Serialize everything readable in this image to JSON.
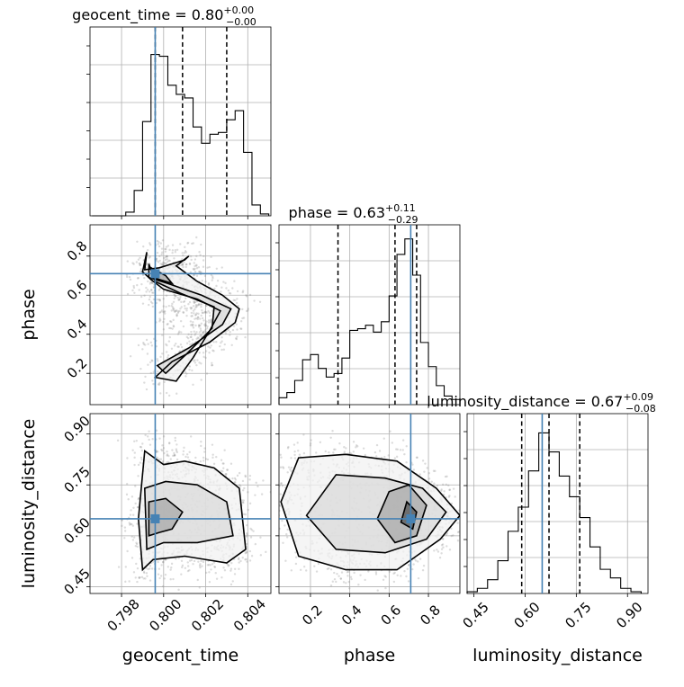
{
  "chart_data": {
    "type": "corner",
    "parameters": [
      "geocent_time",
      "phase",
      "luminosity_distance"
    ],
    "titles": [
      {
        "param": "geocent_time",
        "prefix": "geocent_time = ",
        "value": "0.80",
        "plus": "+0.00",
        "minus": "−0.00"
      },
      {
        "param": "phase",
        "prefix": "phase = ",
        "value": "0.63",
        "plus": "+0.11",
        "minus": "−0.29"
      },
      {
        "param": "luminosity_distance",
        "prefix": "luminosity_distance = ",
        "value": "0.67",
        "plus": "+0.09",
        "minus": "−0.08"
      }
    ],
    "axis_labels": [
      "geocent_time",
      "phase",
      "luminosity_distance"
    ],
    "ranges": {
      "geocent_time": [
        0.7965,
        0.8051
      ],
      "phase": [
        0.04,
        0.96
      ],
      "luminosity_distance": [
        0.43,
        0.96
      ]
    },
    "ticks": {
      "geocent_time": {
        "values": [
          0.798,
          0.8,
          0.802,
          0.804
        ],
        "labels": [
          "0.798",
          "0.800",
          "0.802",
          "0.804"
        ]
      },
      "phase": {
        "values": [
          0.2,
          0.4,
          0.6,
          0.8
        ],
        "labels": [
          "0.2",
          "0.4",
          "0.6",
          "0.8"
        ]
      },
      "luminosity_distance": {
        "values": [
          0.45,
          0.6,
          0.75,
          0.9
        ],
        "labels": [
          "0.45",
          "0.60",
          "0.75",
          "0.90"
        ]
      }
    },
    "truths": {
      "geocent_time": 0.7996,
      "phase": 0.71,
      "luminosity_distance": 0.65
    },
    "quantiles": {
      "geocent_time": [
        0.7996,
        0.8009,
        0.803
      ],
      "phase": [
        0.34,
        0.63,
        0.74
      ],
      "luminosity_distance": [
        0.59,
        0.67,
        0.76
      ]
    },
    "histograms": {
      "geocent_time": {
        "edges": [
          0.7966,
          0.797,
          0.7974,
          0.7978,
          0.7982,
          0.7986,
          0.799,
          0.7994,
          0.7998,
          0.8002,
          0.8006,
          0.801,
          0.8014,
          0.8018,
          0.8022,
          0.8026,
          0.803,
          0.8034,
          0.8038,
          0.8042,
          0.8046,
          0.805
        ],
        "counts": [
          0,
          0,
          0,
          0,
          0.02,
          0.14,
          0.52,
          0.89,
          0.88,
          0.72,
          0.67,
          0.65,
          0.49,
          0.4,
          0.45,
          0.46,
          0.53,
          0.58,
          0.35,
          0.06,
          0.01
        ]
      },
      "phase": {
        "edges": [
          0.04,
          0.08,
          0.12,
          0.16,
          0.2,
          0.24,
          0.28,
          0.32,
          0.36,
          0.4,
          0.44,
          0.48,
          0.52,
          0.56,
          0.6,
          0.64,
          0.68,
          0.72,
          0.76,
          0.8,
          0.84,
          0.88,
          0.92,
          0.96
        ],
        "counts": [
          0.04,
          0.07,
          0.14,
          0.26,
          0.29,
          0.21,
          0.16,
          0.18,
          0.27,
          0.43,
          0.44,
          0.46,
          0.42,
          0.48,
          0.63,
          0.87,
          0.96,
          0.75,
          0.36,
          0.22,
          0.11,
          0.05,
          0.03
        ]
      },
      "luminosity_distance": {
        "edges": [
          0.43,
          0.46,
          0.49,
          0.52,
          0.55,
          0.58,
          0.61,
          0.64,
          0.67,
          0.7,
          0.73,
          0.76,
          0.79,
          0.82,
          0.85,
          0.88,
          0.91,
          0.94
        ],
        "counts": [
          0.01,
          0.03,
          0.08,
          0.19,
          0.36,
          0.5,
          0.71,
          0.93,
          0.82,
          0.68,
          0.56,
          0.44,
          0.27,
          0.14,
          0.09,
          0.03,
          0.01
        ]
      }
    },
    "contours": {
      "phase_vs_geocent_time": [
        [
          [
            0.7992,
            0.82
          ],
          [
            0.7991,
            0.73
          ],
          [
            0.7998,
            0.74
          ],
          [
            0.801,
            0.78
          ],
          [
            0.8012,
            0.8
          ],
          [
            0.8006,
            0.75
          ],
          [
            0.8016,
            0.67
          ],
          [
            0.8028,
            0.6
          ],
          [
            0.8036,
            0.53
          ],
          [
            0.8034,
            0.46
          ],
          [
            0.8022,
            0.36
          ],
          [
            0.8004,
            0.26
          ],
          [
            0.7996,
            0.18
          ],
          [
            0.8006,
            0.16
          ],
          [
            0.8014,
            0.28
          ],
          [
            0.8022,
            0.42
          ],
          [
            0.8027,
            0.52
          ],
          [
            0.8016,
            0.58
          ],
          [
            0.8,
            0.63
          ],
          [
            0.7994,
            0.68
          ],
          [
            0.799,
            0.72
          ],
          [
            0.7992,
            0.82
          ]
        ],
        [
          [
            0.7993,
            0.76
          ],
          [
            0.7993,
            0.69
          ],
          [
            0.8002,
            0.66
          ],
          [
            0.8018,
            0.6
          ],
          [
            0.8032,
            0.53
          ],
          [
            0.8028,
            0.45
          ],
          [
            0.8012,
            0.33
          ],
          [
            0.7997,
            0.24
          ],
          [
            0.8001,
            0.2
          ],
          [
            0.8011,
            0.3
          ],
          [
            0.8023,
            0.43
          ],
          [
            0.8024,
            0.54
          ],
          [
            0.8008,
            0.61
          ],
          [
            0.7996,
            0.67
          ],
          [
            0.7993,
            0.76
          ]
        ],
        [
          [
            0.7994,
            0.74
          ],
          [
            0.7995,
            0.69
          ],
          [
            0.8004,
            0.66
          ],
          [
            0.8001,
            0.7
          ],
          [
            0.7994,
            0.74
          ]
        ]
      ],
      "luminosity_distance_vs_geocent_time": [
        [
          [
            0.799,
            0.5
          ],
          [
            0.7988,
            0.65
          ],
          [
            0.7991,
            0.85
          ],
          [
            0.8,
            0.81
          ],
          [
            0.801,
            0.82
          ],
          [
            0.8024,
            0.8
          ],
          [
            0.8036,
            0.74
          ],
          [
            0.8039,
            0.56
          ],
          [
            0.803,
            0.52
          ],
          [
            0.801,
            0.54
          ],
          [
            0.7995,
            0.53
          ],
          [
            0.799,
            0.5
          ]
        ],
        [
          [
            0.7992,
            0.56
          ],
          [
            0.7991,
            0.74
          ],
          [
            0.8001,
            0.76
          ],
          [
            0.8016,
            0.75
          ],
          [
            0.803,
            0.7
          ],
          [
            0.8033,
            0.6
          ],
          [
            0.8016,
            0.58
          ],
          [
            0.8,
            0.58
          ],
          [
            0.7992,
            0.56
          ]
        ],
        [
          [
            0.7993,
            0.6
          ],
          [
            0.7993,
            0.7
          ],
          [
            0.8001,
            0.71
          ],
          [
            0.8009,
            0.67
          ],
          [
            0.8004,
            0.62
          ],
          [
            0.7998,
            0.61
          ],
          [
            0.7993,
            0.6
          ]
        ]
      ],
      "luminosity_distance_vs_phase": [
        [
          [
            0.05,
            0.7
          ],
          [
            0.14,
            0.83
          ],
          [
            0.38,
            0.84
          ],
          [
            0.64,
            0.82
          ],
          [
            0.84,
            0.74
          ],
          [
            0.96,
            0.66
          ],
          [
            0.86,
            0.59
          ],
          [
            0.64,
            0.5
          ],
          [
            0.38,
            0.5
          ],
          [
            0.14,
            0.54
          ],
          [
            0.05,
            0.7
          ]
        ],
        [
          [
            0.18,
            0.66
          ],
          [
            0.33,
            0.78
          ],
          [
            0.58,
            0.77
          ],
          [
            0.77,
            0.74
          ],
          [
            0.89,
            0.67
          ],
          [
            0.79,
            0.59
          ],
          [
            0.58,
            0.55
          ],
          [
            0.33,
            0.56
          ],
          [
            0.18,
            0.66
          ]
        ],
        [
          [
            0.54,
            0.65
          ],
          [
            0.6,
            0.73
          ],
          [
            0.7,
            0.75
          ],
          [
            0.79,
            0.69
          ],
          [
            0.74,
            0.6
          ],
          [
            0.63,
            0.58
          ],
          [
            0.54,
            0.65
          ]
        ],
        [
          [
            0.66,
            0.64
          ],
          [
            0.69,
            0.7
          ],
          [
            0.74,
            0.67
          ],
          [
            0.72,
            0.62
          ],
          [
            0.66,
            0.64
          ]
        ]
      ]
    },
    "colors": {
      "truth": "#4682b4",
      "contour": "#000000",
      "grid": "#b0b0b0",
      "points": "#808080"
    }
  }
}
